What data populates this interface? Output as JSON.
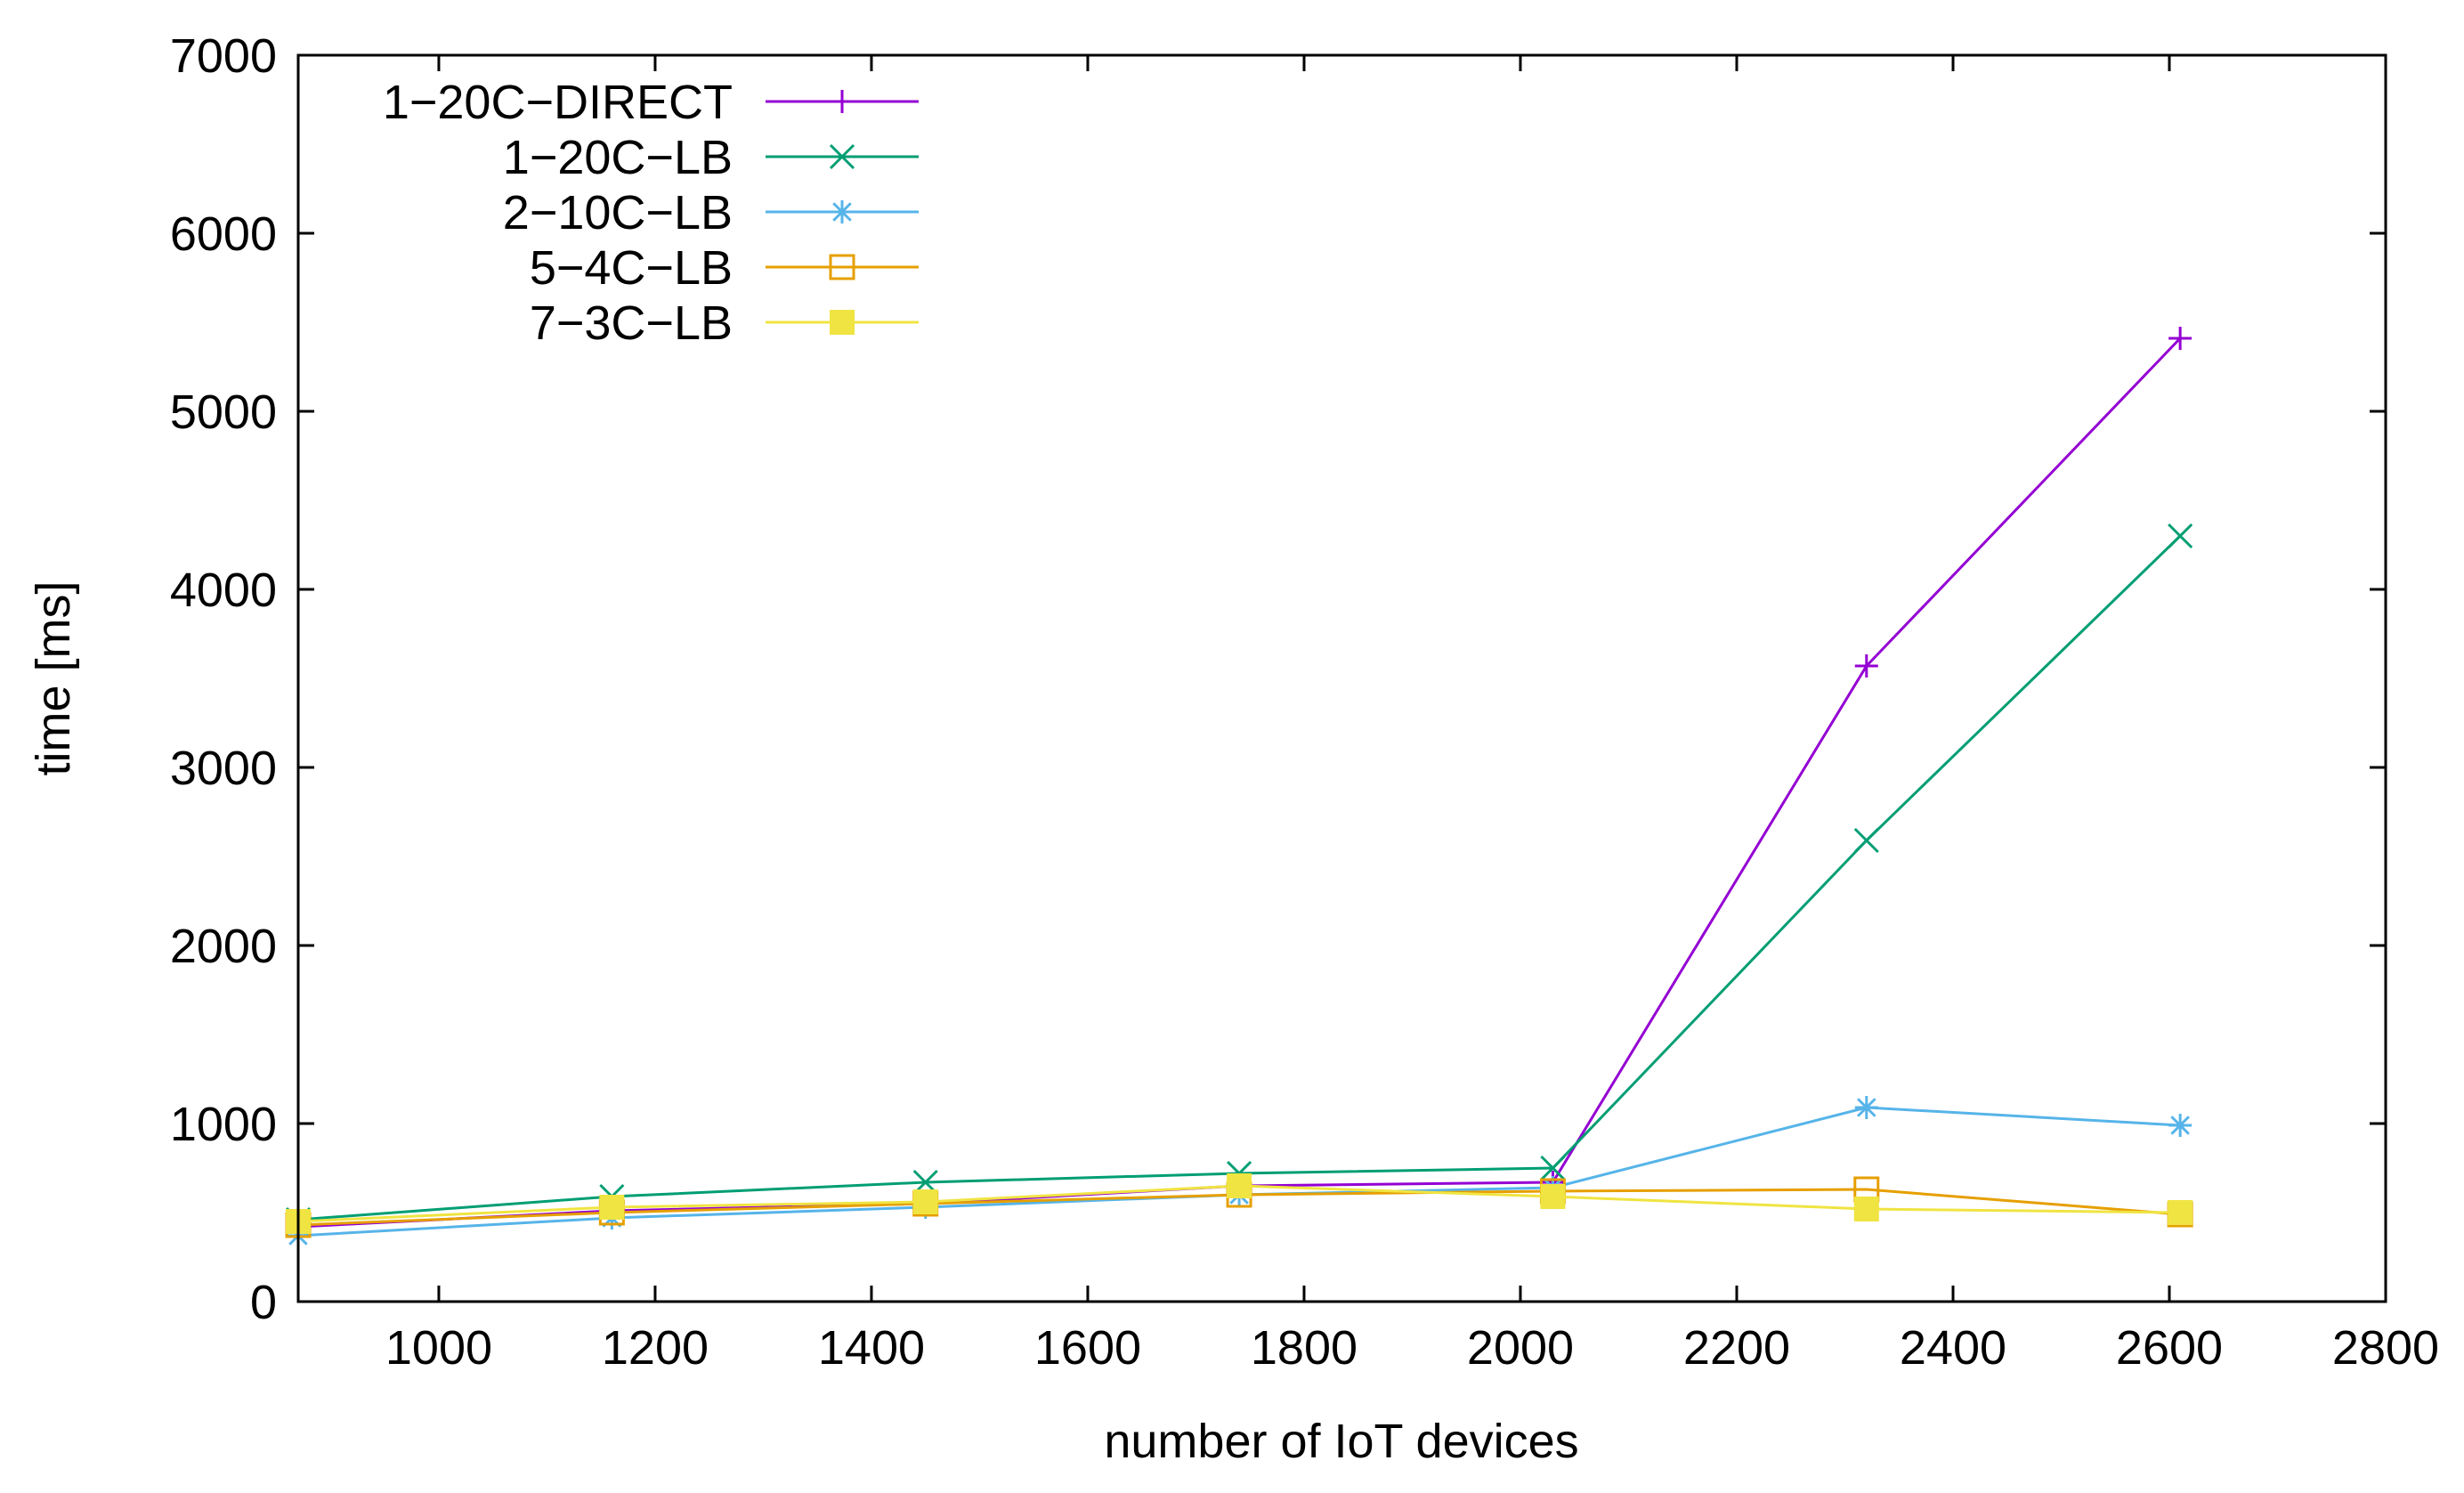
{
  "chart_data": {
    "type": "line",
    "title": "",
    "xlabel": "number of IoT devices",
    "ylabel": "time [ms]",
    "xlim": [
      870,
      2800
    ],
    "ylim": [
      0,
      7000
    ],
    "xticks": [
      1000,
      1200,
      1400,
      1600,
      1800,
      2000,
      2200,
      2400,
      2600,
      2800
    ],
    "yticks": [
      0,
      1000,
      2000,
      3000,
      4000,
      5000,
      6000,
      7000
    ],
    "x": [
      870,
      1160,
      1450,
      1740,
      2030,
      2320,
      2610
    ],
    "grid": false,
    "legend_position": "top-left",
    "series": [
      {
        "name": "1−20C−DIRECT",
        "color": "#9400d3",
        "marker": "plus",
        "values": [
          420,
          510,
          550,
          650,
          670,
          3570,
          5410
        ]
      },
      {
        "name": "1−20C−LB",
        "color": "#009e73",
        "marker": "cross",
        "values": [
          460,
          590,
          670,
          720,
          750,
          2590,
          4300
        ]
      },
      {
        "name": "2−10C−LB",
        "color": "#56b4e9",
        "marker": "star",
        "values": [
          370,
          470,
          530,
          600,
          640,
          1090,
          990
        ]
      },
      {
        "name": "5−4C−LB",
        "color": "#e69f00",
        "marker": "open-square",
        "values": [
          430,
          500,
          550,
          600,
          620,
          630,
          490
        ]
      },
      {
        "name": "7−3C−LB",
        "color": "#f0e442",
        "marker": "filled-square",
        "values": [
          450,
          530,
          560,
          650,
          590,
          520,
          500
        ]
      }
    ]
  }
}
